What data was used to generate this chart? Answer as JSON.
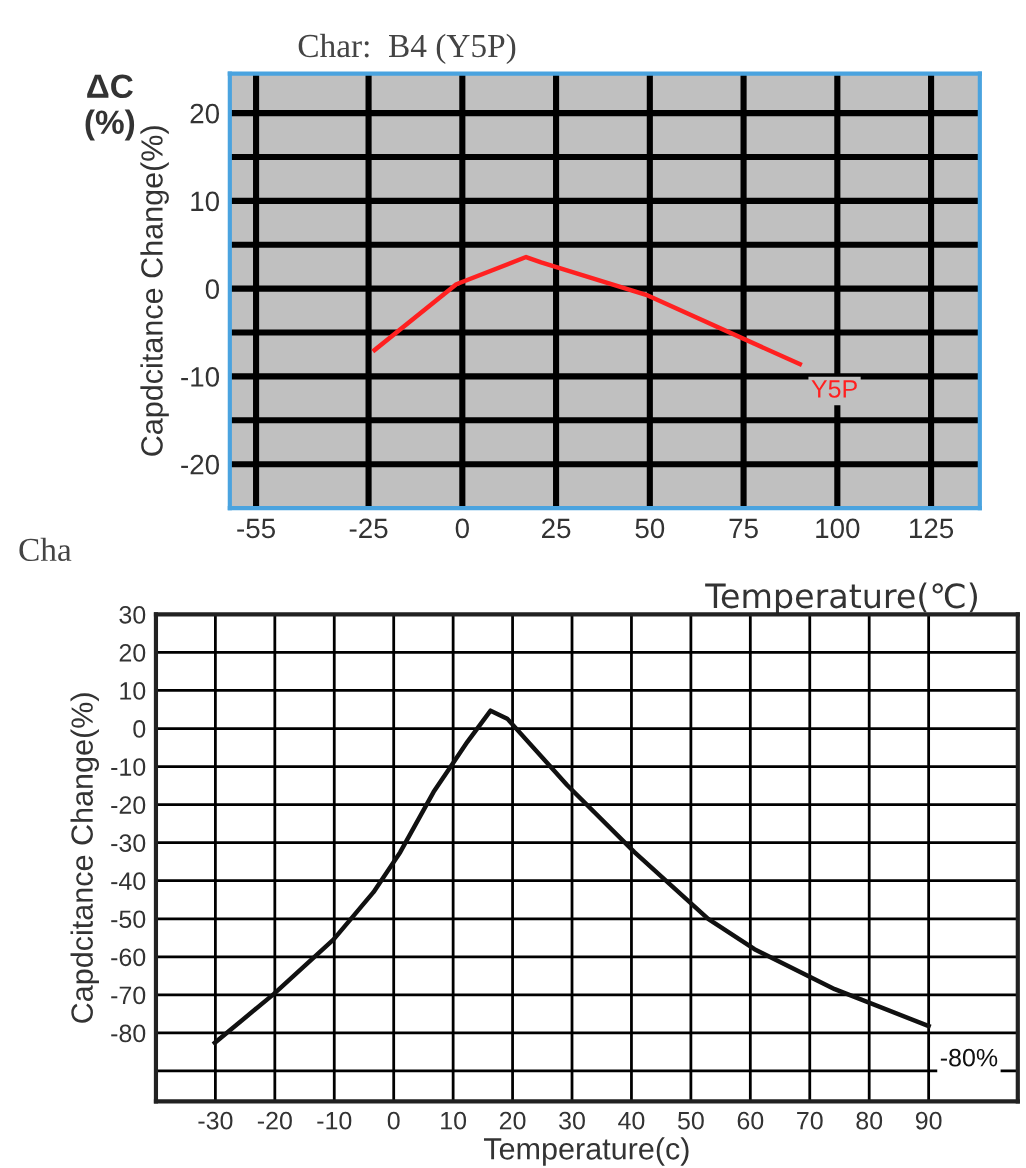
{
  "chart_data": [
    {
      "type": "line",
      "title": "Char:  B4 (Y5P)",
      "xlabel": "Temperature(℃)",
      "ylabel": "Capdcitance Change(%)",
      "x": [
        -23.4,
        -1.6,
        17,
        21,
        49,
        90
      ],
      "series": [
        {
          "color": "#ff2020",
          "values": [
            -7,
            0.5,
            3.6,
            3,
            -0.7,
            -8.6
          ]
        }
      ],
      "xlim": [
        -62,
        138
      ],
      "ylim": [
        -25,
        24.5
      ],
      "xticks": [
        -55,
        -25,
        0,
        25,
        50,
        75,
        100,
        125
      ],
      "yticks": [
        {
          "value": -20,
          "label": "-20"
        },
        {
          "value": -15,
          "label": null
        },
        {
          "value": -10,
          "label": "-10"
        },
        {
          "value": -5,
          "label": null
        },
        0,
        {
          "value": 5,
          "label": null
        },
        10,
        {
          "value": 15,
          "label": null
        },
        20
      ],
      "grid": true,
      "marker": "none",
      "line_style": "solid",
      "annotations": [
        "ΔC\n(%)",
        {
          "text": "Y5P",
          "x": 90,
          "y": -8.6
        }
      ]
    },
    {
      "type": "line",
      "title": "Cha",
      "xlabel": "Temperature(c)",
      "ylabel": "Capdcitance Change(%)",
      "x": [
        -30.1,
        -20.2,
        -10.1,
        -3.4,
        1.1,
        6.7,
        12.4,
        16.3,
        19.1,
        29.2,
        40.5,
        52.9,
        60.7,
        74.2,
        90
      ],
      "series": [
        {
          "color": "#111111",
          "values": [
            -82.6,
            -69.8,
            -55.4,
            -43,
            -32.5,
            -16.7,
            -3.5,
            4.7,
            2.6,
            -14.9,
            -32.5,
            -50,
            -58,
            -68.5,
            -78.2
          ]
        }
      ],
      "xlim": [
        -40,
        105
      ],
      "ylim": [
        -98,
        30
      ],
      "xticks": [
        -30,
        -20,
        -10,
        0,
        10,
        20,
        30,
        40,
        50,
        60,
        70,
        80,
        90
      ],
      "yticks": [
        {
          "value": -90,
          "label": null
        },
        -80,
        -70,
        -60,
        -50,
        -40,
        -30,
        -20,
        -10,
        0,
        10,
        20,
        30
      ],
      "grid": true,
      "marker": "none",
      "line_style": "solid",
      "annotations": [
        {
          "text": "-80%",
          "x": 90,
          "y": -80
        }
      ]
    }
  ]
}
